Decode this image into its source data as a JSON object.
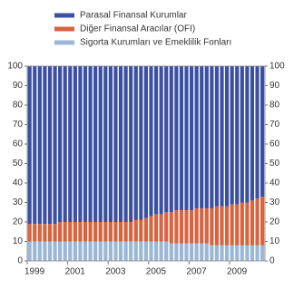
{
  "chart_data": {
    "type": "stacked_bar",
    "legend": "top",
    "grid": false,
    "categories": [
      "1999",
      null,
      null,
      null,
      null,
      null,
      null,
      null,
      "2001",
      null,
      null,
      null,
      null,
      null,
      null,
      null,
      "2003",
      null,
      null,
      null,
      null,
      null,
      null,
      null,
      "2005",
      null,
      null,
      null,
      null,
      null,
      null,
      null,
      "2007",
      null,
      null,
      null,
      null,
      null,
      null,
      null,
      "2009",
      null,
      null,
      null,
      null,
      null,
      null
    ],
    "series": [
      {
        "name": "Sigorta Kurumları ve Emeklilik Fonları",
        "color": "#9bb7d6",
        "values": [
          10,
          10,
          10,
          10,
          10,
          10,
          10,
          10,
          10,
          10,
          10,
          10,
          10,
          10,
          10,
          10,
          10,
          10,
          10,
          10,
          10,
          10,
          10,
          10,
          10,
          10,
          10,
          10,
          9,
          9,
          9,
          9,
          9,
          9,
          9,
          9,
          8,
          8,
          8,
          8,
          8,
          8,
          8,
          8,
          8,
          8,
          8
        ]
      },
      {
        "name": "Diğer Finansal Aracılar (OFI)",
        "color": "#d8643f",
        "values": [
          9,
          9,
          9,
          9,
          9,
          9,
          10,
          10,
          10,
          10,
          10,
          10,
          10,
          10,
          10,
          10,
          10,
          10,
          10,
          10,
          10,
          11,
          11,
          12,
          13,
          14,
          14,
          15,
          16,
          17,
          17,
          17,
          17,
          18,
          18,
          18,
          19,
          20,
          20,
          20,
          21,
          21,
          22,
          22,
          23,
          24,
          25
        ]
      },
      {
        "name": "Parasal Finansal Kurumlar",
        "color": "#3c50a3",
        "values": [
          81,
          81,
          81,
          81,
          81,
          81,
          80,
          80,
          80,
          80,
          80,
          80,
          80,
          80,
          80,
          80,
          80,
          80,
          80,
          80,
          80,
          79,
          79,
          78,
          77,
          76,
          76,
          75,
          75,
          74,
          74,
          74,
          74,
          73,
          73,
          73,
          73,
          72,
          72,
          72,
          71,
          71,
          70,
          70,
          69,
          68,
          67
        ]
      }
    ],
    "ylim": [
      0,
      100
    ],
    "yticks": [
      0,
      10,
      20,
      30,
      40,
      50,
      60,
      70,
      80,
      90,
      100
    ],
    "y2lim": [
      0,
      100
    ],
    "y2ticks": [
      0,
      10,
      20,
      30,
      40,
      50,
      60,
      70,
      80,
      90,
      100
    ]
  }
}
